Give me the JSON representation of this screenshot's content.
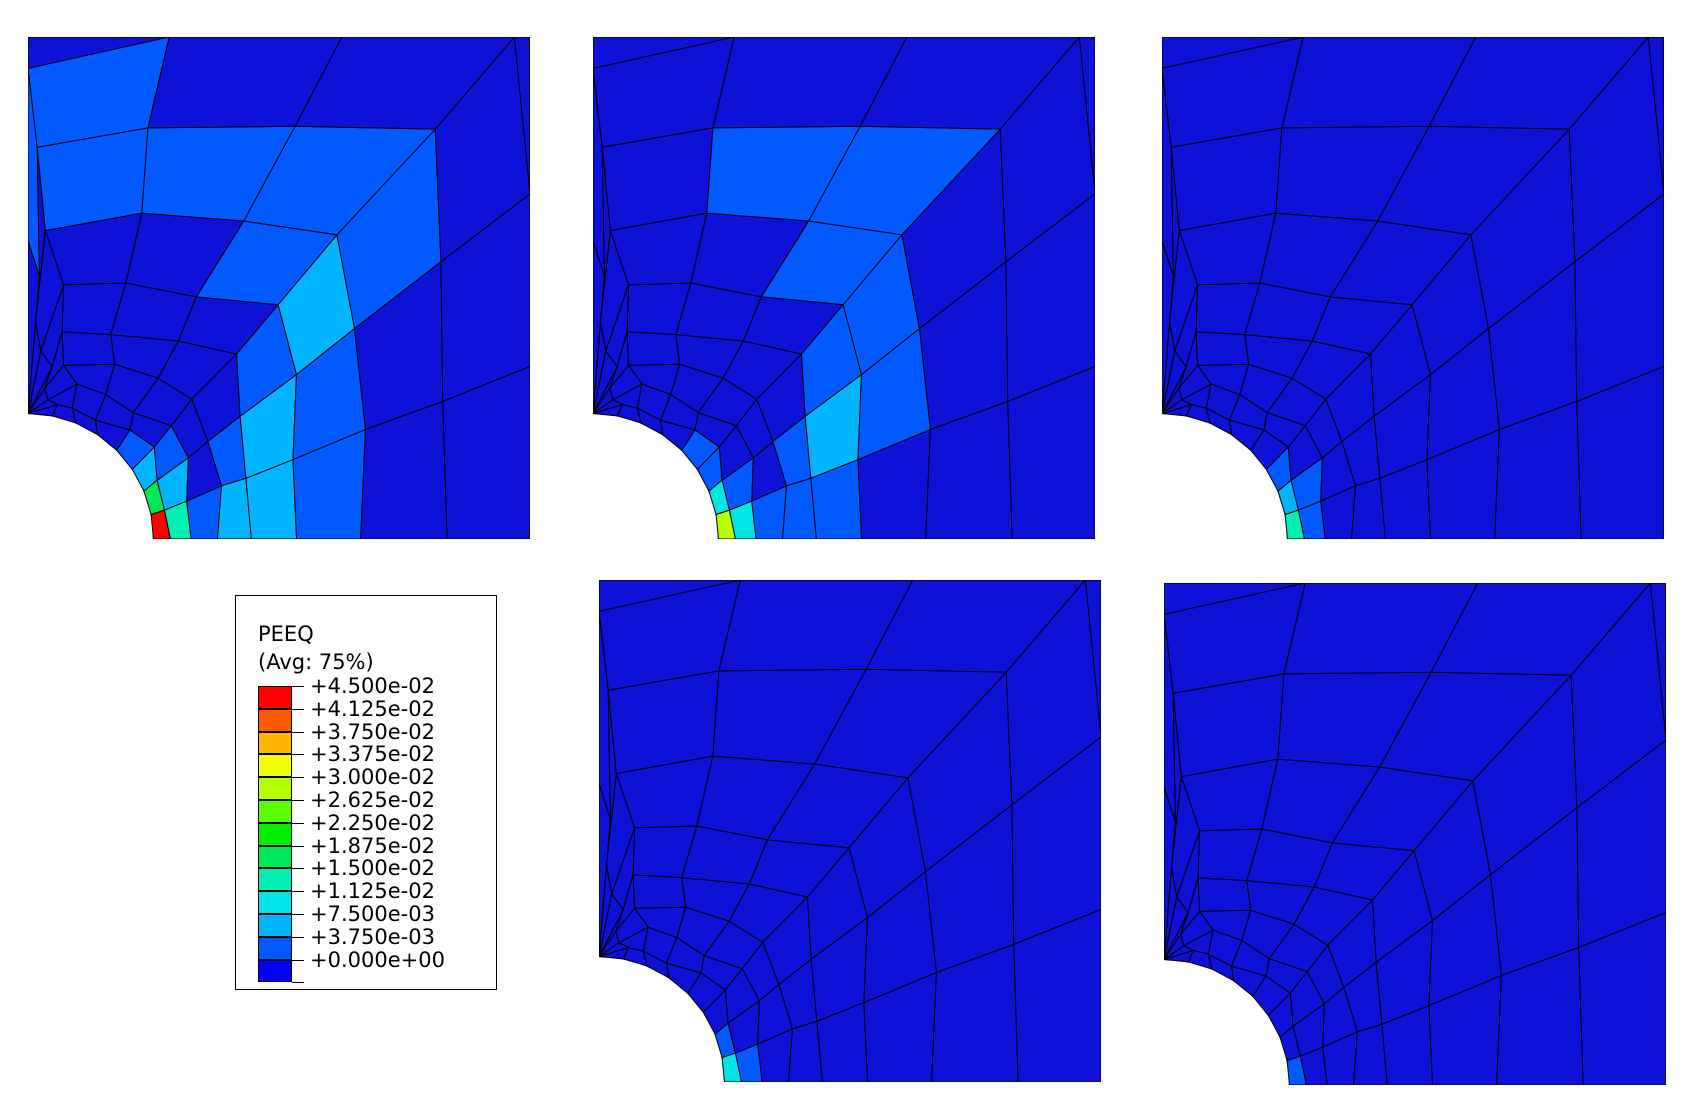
{
  "legend": {
    "title": "PEEQ",
    "subtitle": "(Avg: 75%)",
    "levels": [
      {
        "label": "+4.500e-02",
        "color": "#ff0000"
      },
      {
        "label": "+4.125e-02",
        "color": "#ff5a00"
      },
      {
        "label": "+3.750e-02",
        "color": "#ffb400"
      },
      {
        "label": "+3.375e-02",
        "color": "#f0ff00"
      },
      {
        "label": "+3.000e-02",
        "color": "#b4ff00"
      },
      {
        "label": "+2.625e-02",
        "color": "#5aff00"
      },
      {
        "label": "+2.250e-02",
        "color": "#00f000"
      },
      {
        "label": "+1.875e-02",
        "color": "#00e85a"
      },
      {
        "label": "+1.500e-02",
        "color": "#00f0b4"
      },
      {
        "label": "+1.125e-02",
        "color": "#00e6e6"
      },
      {
        "label": "+7.500e-03",
        "color": "#00b4ff"
      },
      {
        "label": "+3.750e-03",
        "color": "#005aff"
      },
      {
        "label": "+0.000e+00",
        "color": "#0000ff"
      }
    ]
  },
  "colors": {
    "base": "#0d12d6",
    "mesh_line": "#000000"
  },
  "plots": [
    {
      "name": "top-left",
      "hotspot_level": 0.045
    },
    {
      "name": "top-middle",
      "hotspot_level": 0.03
    },
    {
      "name": "top-right",
      "hotspot_level": 0.015
    },
    {
      "name": "bottom-middle",
      "hotspot_level": 0.01125
    },
    {
      "name": "bottom-right",
      "hotspot_level": 0.00375
    }
  ]
}
